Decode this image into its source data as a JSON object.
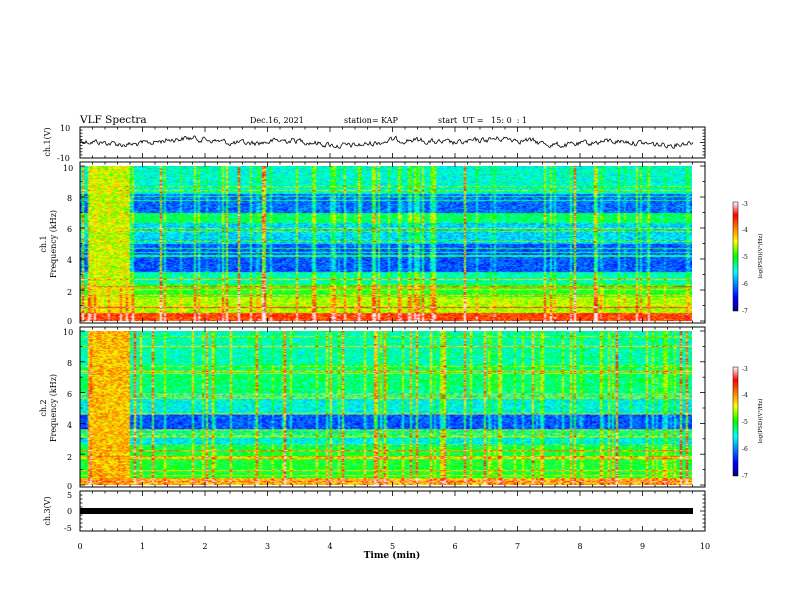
{
  "header": {
    "title": "VLF Spectra",
    "date": "Dec.16, 2021",
    "station": "station= KAP",
    "start": "start  UT =   15: 0  : 1"
  },
  "chart_data": [
    {
      "type": "line",
      "name": "ch1-waveform",
      "ylabel": "ch.1(V)",
      "ylim": [
        -10,
        10
      ],
      "yticks": [
        "10",
        "-10"
      ],
      "xlim": [
        0,
        10
      ],
      "color": "#000000"
    },
    {
      "type": "heatmap",
      "name": "ch1-spectrogram",
      "ylabel": "ch.1 Frequency (kHz)",
      "ylabel_lines": [
        "ch.1",
        "Frequency (kHz)"
      ],
      "ylim": [
        0,
        10
      ],
      "yticks": [
        "0",
        "2",
        "4",
        "6",
        "8",
        "10"
      ],
      "xlim": [
        0,
        9.8
      ],
      "colorbar": {
        "label": "log(PSD)(V²/Hz)",
        "range": [
          -7,
          -3
        ],
        "ticks": [
          "-3",
          "-4",
          "-5",
          "-6",
          "-7"
        ]
      }
    },
    {
      "type": "heatmap",
      "name": "ch2-spectrogram",
      "ylabel": "ch.2 Frequency (kHz)",
      "ylabel_lines": [
        "ch.2",
        "Frequency (kHz)"
      ],
      "ylim": [
        0,
        10
      ],
      "yticks": [
        "0",
        "2",
        "4",
        "6",
        "8",
        "10"
      ],
      "xlim": [
        0,
        9.8
      ],
      "colorbar": {
        "label": "log(PSD)(V²/Hz)",
        "range": [
          -7,
          -3
        ],
        "ticks": [
          "-3",
          "-4",
          "-5",
          "-6",
          "-7"
        ]
      }
    },
    {
      "type": "line",
      "name": "ch3-signal",
      "ylabel": "ch.3(V)",
      "ylim": [
        -5,
        5
      ],
      "yticks": [
        "5",
        "0",
        "-5"
      ],
      "value": 0,
      "color": "#000000"
    }
  ],
  "xaxis": {
    "label": "Time (min)",
    "range": [
      0,
      10
    ],
    "ticks": [
      "0",
      "1",
      "2",
      "3",
      "4",
      "5",
      "6",
      "7",
      "8",
      "9",
      "10"
    ]
  },
  "colors": {
    "axes": "#000000",
    "trace": "#000000"
  }
}
